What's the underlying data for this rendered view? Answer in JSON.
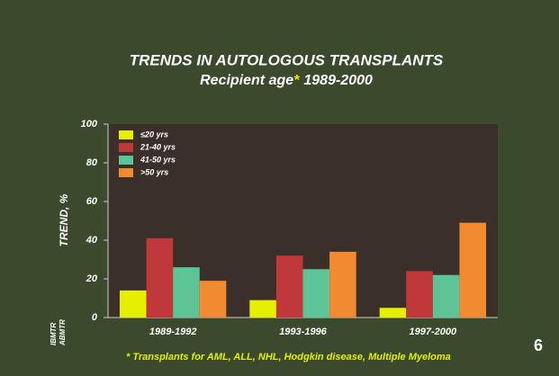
{
  "chart_data": {
    "type": "bar",
    "title": "TRENDS IN AUTOLOGOUS TRANSPLANTS",
    "subtitle_parts": [
      "Recipient age",
      "*",
      "1989-2000"
    ],
    "ylabel": "TREND, %",
    "categories": [
      "1989-1992",
      "1993-1996",
      "1997-2000"
    ],
    "series": [
      {
        "name": "≤20 yrs",
        "color": "#e6ef00",
        "values": [
          14,
          9,
          5
        ]
      },
      {
        "name": "21-40 yrs",
        "color": "#c0383a",
        "values": [
          41,
          32,
          24
        ]
      },
      {
        "name": "41-50 yrs",
        "color": "#5cc496",
        "values": [
          26,
          25,
          22
        ]
      },
      {
        "name": ">50 yrs",
        "color": "#f28a32",
        "values": [
          19,
          34,
          49
        ]
      }
    ],
    "ylim": [
      0,
      100
    ],
    "yticks": [
      0,
      20,
      40,
      60,
      80,
      100
    ],
    "grid": false,
    "legend": "upper left"
  },
  "footnote": "* Transplants for AML, ALL, NHL, Hodgkin disease, Multiple Myeloma",
  "slide_number": "6",
  "logo": [
    "IBMTR",
    "ABMTR"
  ]
}
